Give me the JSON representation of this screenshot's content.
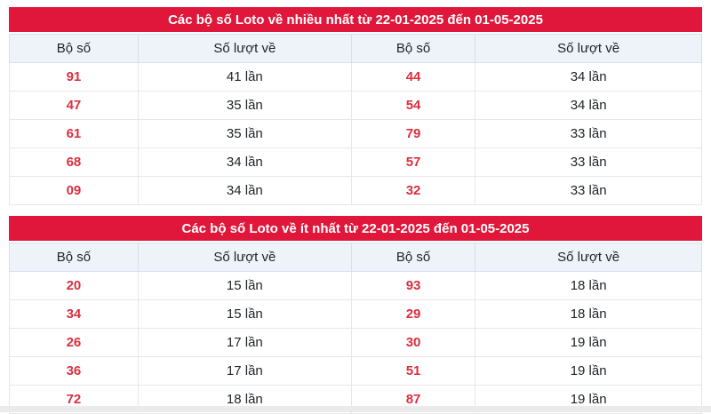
{
  "colors": {
    "title_bar_bg": "#e0173a",
    "title_text": "#ffffff",
    "header_row_bg": "#eef2f9",
    "number_red": "#dc2f3e",
    "cell_text": "#212529",
    "body_border": "#e8e8e8",
    "header_border": "#d6e0ee",
    "bottom_strip": "#ebebeb"
  },
  "tables": [
    {
      "title": "Các bộ số Loto về nhiều nhất từ 22-01-2025 đến 01-05-2025",
      "columns": [
        "Bộ số",
        "Số lượt về",
        "Bộ số",
        "Số lượt về"
      ],
      "rows": [
        [
          "91",
          "41 lần",
          "44",
          "34 lần"
        ],
        [
          "47",
          "35 lần",
          "54",
          "34 lần"
        ],
        [
          "61",
          "35 lần",
          "79",
          "33 lần"
        ],
        [
          "68",
          "34 lần",
          "57",
          "33 lần"
        ],
        [
          "09",
          "34 lần",
          "32",
          "33 lần"
        ]
      ]
    },
    {
      "title": "Các bộ số Loto về ít nhất từ 22-01-2025 đến 01-05-2025",
      "columns": [
        "Bộ số",
        "Số lượt về",
        "Bộ số",
        "Số lượt về"
      ],
      "rows": [
        [
          "20",
          "15 lần",
          "93",
          "18 lần"
        ],
        [
          "34",
          "15 lần",
          "29",
          "18 lần"
        ],
        [
          "26",
          "17 lần",
          "30",
          "19 lần"
        ],
        [
          "36",
          "17 lần",
          "51",
          "19 lần"
        ],
        [
          "72",
          "18 lần",
          "87",
          "19 lần"
        ]
      ]
    }
  ]
}
